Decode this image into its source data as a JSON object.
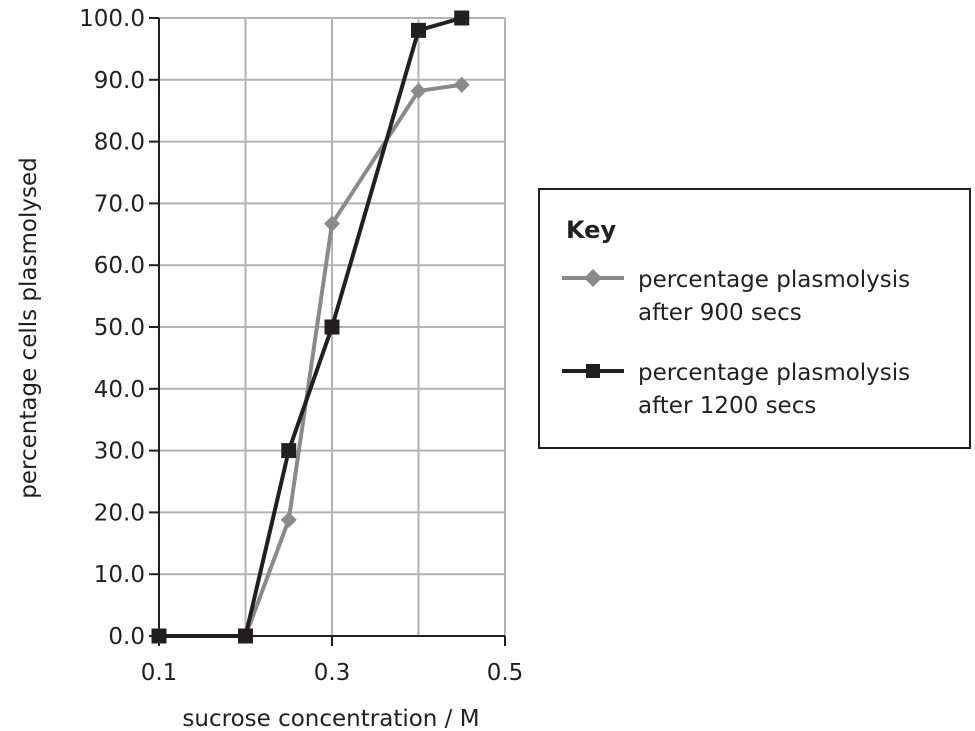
{
  "chart_data": {
    "type": "line",
    "title": "",
    "xlabel": "sucrose concentration / M",
    "ylabel": "percentage cells plasmolysed",
    "xlim": [
      0.1,
      0.5
    ],
    "ylim": [
      0,
      100
    ],
    "x_ticks": [
      "0.1",
      "0.3",
      "0.5"
    ],
    "x_tick_values": [
      0.1,
      0.3,
      0.5
    ],
    "x_minor_gridlines": [
      0.2,
      0.4
    ],
    "y_ticks": [
      "0.0",
      "10.0",
      "20.0",
      "30.0",
      "40.0",
      "50.0",
      "60.0",
      "70.0",
      "80.0",
      "90.0",
      "100.0"
    ],
    "y_tick_values": [
      0,
      10,
      20,
      30,
      40,
      50,
      60,
      70,
      80,
      90,
      100
    ],
    "grid": true,
    "legend_placement": "right",
    "legend_title": "Key",
    "series": [
      {
        "name_lines": [
          "percentage plasmolysis",
          "after 900 secs"
        ],
        "color": "#8a8a8a",
        "marker": "diamond",
        "x": [
          0.1,
          0.2,
          0.25,
          0.3,
          0.4,
          0.45
        ],
        "y": [
          0.0,
          0.0,
          18.8,
          66.7,
          88.2,
          89.2
        ]
      },
      {
        "name_lines": [
          "percentage plasmolysis",
          "after 1200 secs"
        ],
        "color": "#231f20",
        "marker": "square",
        "x": [
          0.1,
          0.2,
          0.25,
          0.3,
          0.4,
          0.45
        ],
        "y": [
          0.0,
          0.0,
          30.0,
          50.0,
          98.0,
          100.0
        ]
      }
    ]
  }
}
